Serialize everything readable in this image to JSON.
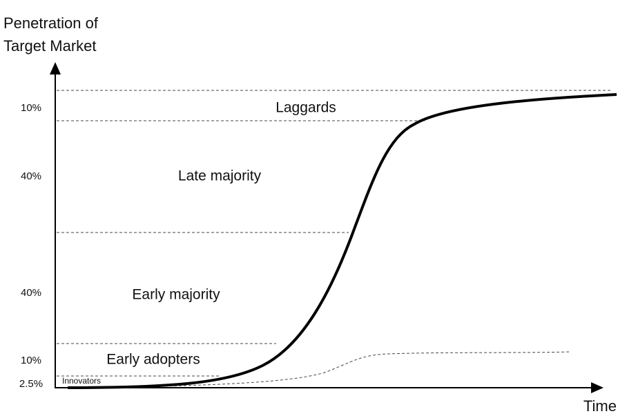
{
  "y_axis_title": [
    "Penetration of",
    "Target Market"
  ],
  "x_axis_title": "Time",
  "segments": [
    {
      "share": "10%",
      "label": "Laggards"
    },
    {
      "share": "40%",
      "label": "Late majority"
    },
    {
      "share": "40%",
      "label": "Early majority"
    },
    {
      "share": "10%",
      "label": "Early adopters"
    },
    {
      "share": "2.5%",
      "label": "Innovators"
    }
  ]
}
